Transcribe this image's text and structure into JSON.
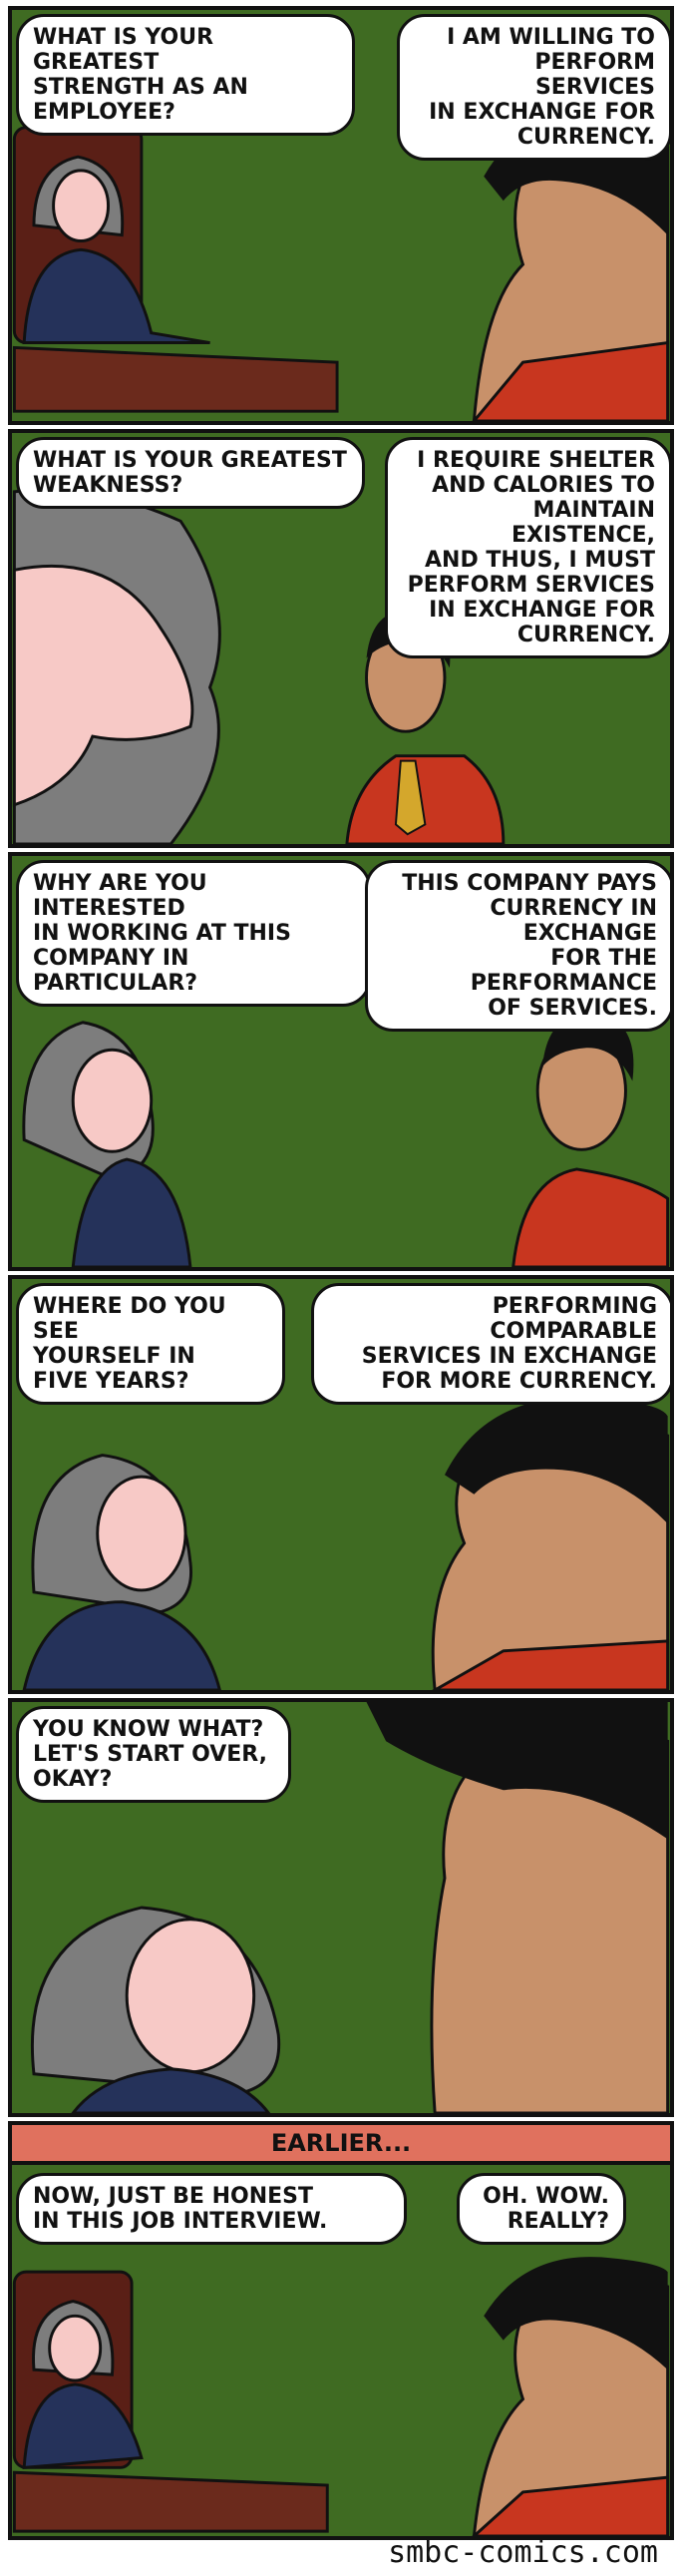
{
  "panels": [
    {
      "bubbles": [
        "WHAT IS YOUR GREATEST\nSTRENGTH AS AN\nEMPLOYEE?",
        "I AM WILLING TO\nPERFORM SERVICES\nIN EXCHANGE FOR\nCURRENCY."
      ]
    },
    {
      "bubbles": [
        "WHAT IS YOUR GREATEST\nWEAKNESS?",
        "I REQUIRE SHELTER\nAND CALORIES TO\nMAINTAIN EXISTENCE,\nAND THUS, I MUST\nPERFORM SERVICES\nIN EXCHANGE FOR\nCURRENCY."
      ]
    },
    {
      "bubbles": [
        "WHY ARE YOU INTERESTED\nIN WORKING AT THIS\nCOMPANY IN\nPARTICULAR?",
        "THIS COMPANY PAYS\nCURRENCY IN EXCHANGE\nFOR THE PERFORMANCE\nOF SERVICES."
      ]
    },
    {
      "bubbles": [
        "WHERE DO YOU SEE\nYOURSELF IN\nFIVE YEARS?",
        "PERFORMING COMPARABLE\nSERVICES IN EXCHANGE\nFOR MORE CURRENCY."
      ]
    },
    {
      "bubbles": [
        "YOU KNOW WHAT?\nLET'S START OVER,\nOKAY?"
      ]
    },
    {
      "caption": "EARLIER...",
      "bubbles": [
        "NOW, JUST BE HONEST\nIN THIS JOB INTERVIEW.",
        "OH. WOW.\nREALLY?"
      ]
    }
  ],
  "credit": "smbc-comics.com",
  "colors": {
    "background": "#3f6b22",
    "skin_woman": "#f7c9c6",
    "skin_man": "#c8916a",
    "hair": "#7d7d7d",
    "shirt_man": "#c8361f",
    "desk": "#6b2a1c",
    "caption": "#e0715e"
  }
}
